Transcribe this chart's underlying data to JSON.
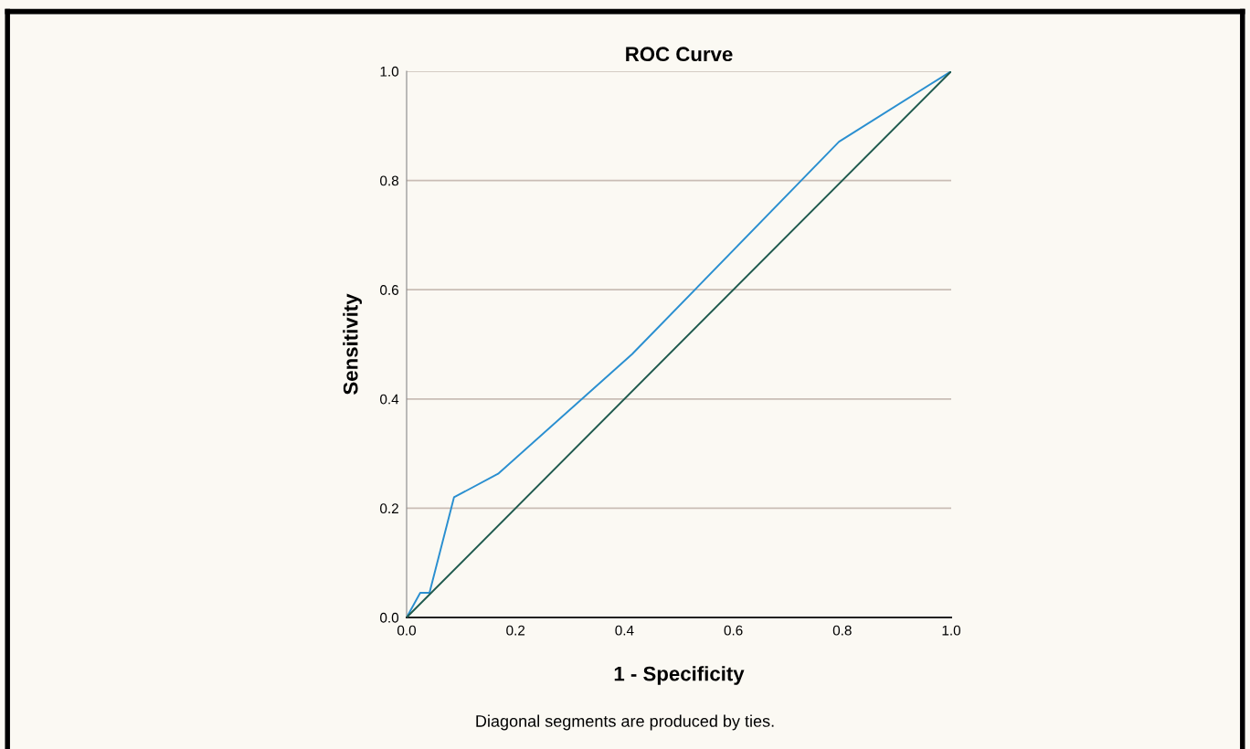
{
  "chart_data": {
    "type": "line",
    "title": "ROC Curve",
    "xlabel": "1 - Specificity",
    "ylabel": "Sensitivity",
    "annotations": [
      "Diagonal segments are produced by ties."
    ],
    "series": [
      {
        "color": "#2a8fd0",
        "x": [
          0.0,
          0.025,
          0.042,
          0.087,
          0.168,
          0.414,
          0.794,
          1.0
        ],
        "values": [
          0.0,
          0.045,
          0.045,
          0.22,
          0.263,
          0.482,
          0.871,
          1.0
        ]
      },
      {
        "color": "#1f5a4e",
        "x": [
          0.0,
          1.0
        ],
        "values": [
          0.0,
          1.0
        ]
      }
    ],
    "xlim": [
      0.0,
      1.0
    ],
    "ylim": [
      0.0,
      1.0
    ],
    "xticks": [
      {
        "value": 0,
        "label": "0.0"
      },
      {
        "value": 0.2,
        "label": "0.2"
      },
      {
        "value": 0.4,
        "label": "0.4"
      },
      {
        "value": 0.6,
        "label": "0.6"
      },
      {
        "value": 0.8,
        "label": "0.8"
      },
      {
        "value": 1,
        "label": "1.0"
      }
    ],
    "yticks": [
      {
        "value": 0,
        "label": "0.0"
      },
      {
        "value": 0.2,
        "label": "0.2"
      },
      {
        "value": 0.4,
        "label": "0.4"
      },
      {
        "value": 0.6,
        "label": "0.6"
      },
      {
        "value": 0.8,
        "label": "0.8"
      },
      {
        "value": 1,
        "label": "1.0"
      }
    ],
    "grid": "y"
  }
}
